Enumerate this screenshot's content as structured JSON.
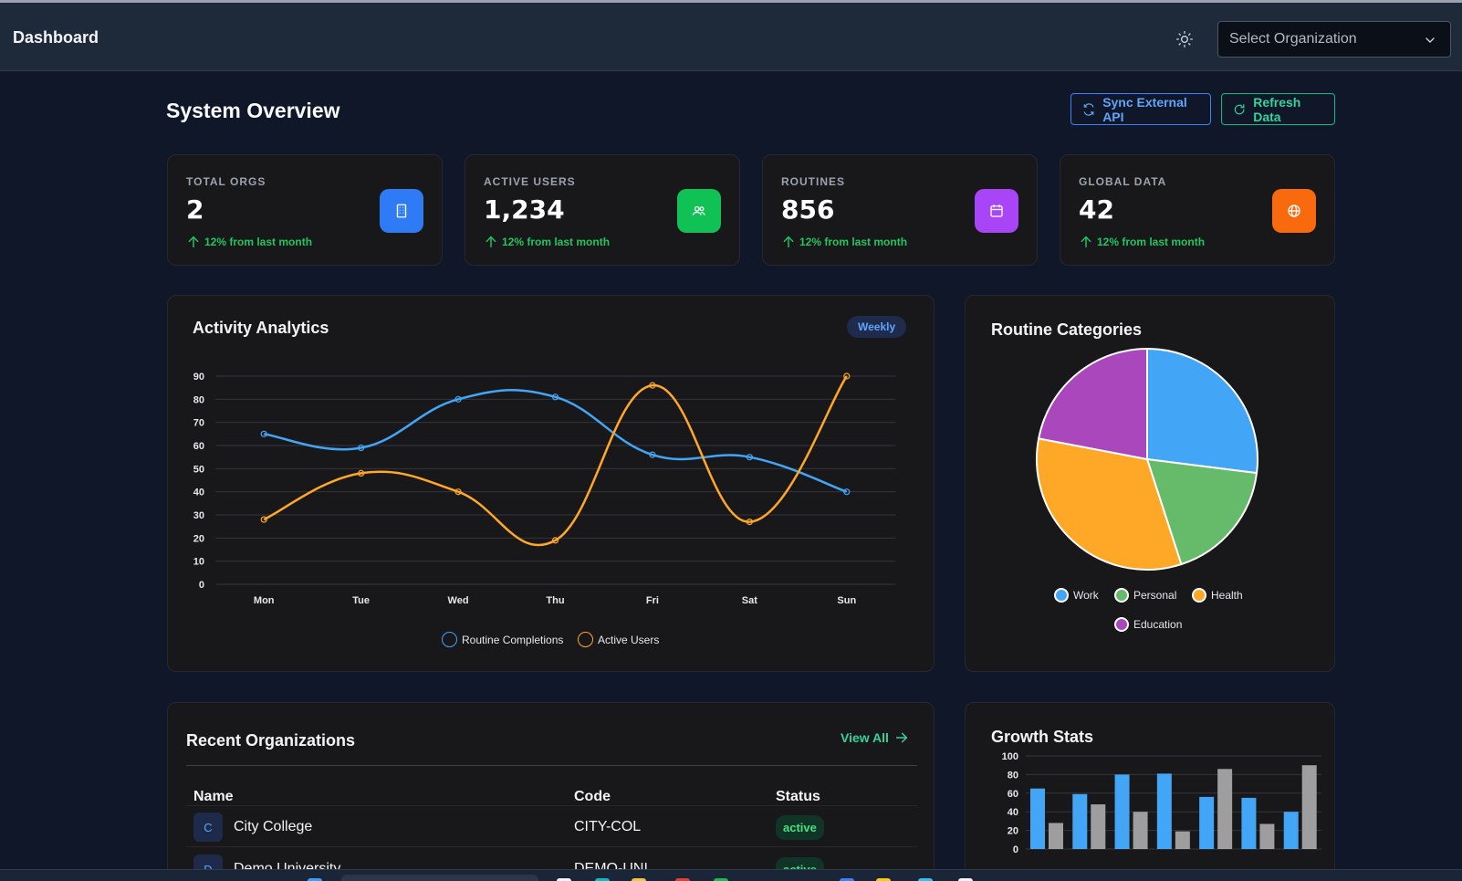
{
  "header": {
    "title": "Dashboard",
    "org_select_placeholder": "Select Organization",
    "theme_icon": "sun-icon"
  },
  "overview": {
    "title": "System Overview",
    "sync_label": "Sync External API",
    "refresh_label": "Refresh Data"
  },
  "stats": [
    {
      "label": "TOTAL ORGS",
      "value": "2",
      "trend": "12% from last month",
      "icon": "building-icon",
      "color": "#2f7bf6"
    },
    {
      "label": "ACTIVE USERS",
      "value": "1,234",
      "trend": "12% from last month",
      "icon": "users-icon",
      "color": "#10c255"
    },
    {
      "label": "ROUTINES",
      "value": "856",
      "trend": "12% from last month",
      "icon": "calendar-icon",
      "color": "#a845f6"
    },
    {
      "label": "GLOBAL DATA",
      "value": "42",
      "trend": "12% from last month",
      "icon": "globe-icon",
      "color": "#f9690d"
    }
  ],
  "activity": {
    "title": "Activity Analytics",
    "badge": "Weekly"
  },
  "chart_data": [
    {
      "type": "line",
      "x": [
        "Mon",
        "Tue",
        "Wed",
        "Thu",
        "Fri",
        "Sat",
        "Sun"
      ],
      "ylim": [
        0,
        90
      ],
      "yticks": [
        "0",
        "10",
        "20",
        "30",
        "40",
        "50",
        "60",
        "70",
        "80",
        "90"
      ],
      "series": [
        {
          "name": "Routine Completions",
          "color": "#42a5f5",
          "values": [
            65,
            59,
            80,
            81,
            56,
            55,
            40
          ]
        },
        {
          "name": "Active Users",
          "color": "#ffa726",
          "values": [
            28,
            48,
            40,
            19,
            86,
            27,
            90
          ]
        }
      ],
      "grid": true,
      "legend": "bottom"
    },
    {
      "type": "pie",
      "title": "Routine Categories",
      "categories": [
        "Work",
        "Personal",
        "Health",
        "Education"
      ],
      "values": [
        27,
        18,
        33,
        22
      ],
      "colors": [
        "#42a5f5",
        "#66bb6a",
        "#ffa726",
        "#ab47bc"
      ],
      "legend": "bottom"
    },
    {
      "type": "bar",
      "title": "Growth Stats",
      "ylim": [
        0,
        100
      ],
      "yticks": [
        "0",
        "20",
        "40",
        "60",
        "80",
        "100"
      ],
      "series": [
        {
          "color": "#42a5f5",
          "values": [
            65,
            59,
            80,
            81,
            56,
            55,
            40
          ]
        },
        {
          "color": "#9e9e9e",
          "values": [
            28,
            48,
            40,
            19,
            86,
            27,
            90
          ]
        }
      ]
    }
  ],
  "orgs": {
    "title": "Recent Organizations",
    "view_all": "View All",
    "columns": [
      "Name",
      "Code",
      "Status"
    ],
    "rows": [
      {
        "initial": "C",
        "name": "City College",
        "code": "CITY-COL",
        "status": "active"
      },
      {
        "initial": "D",
        "name": "Demo University",
        "code": "DEMO-UNI",
        "status": "active"
      }
    ]
  }
}
